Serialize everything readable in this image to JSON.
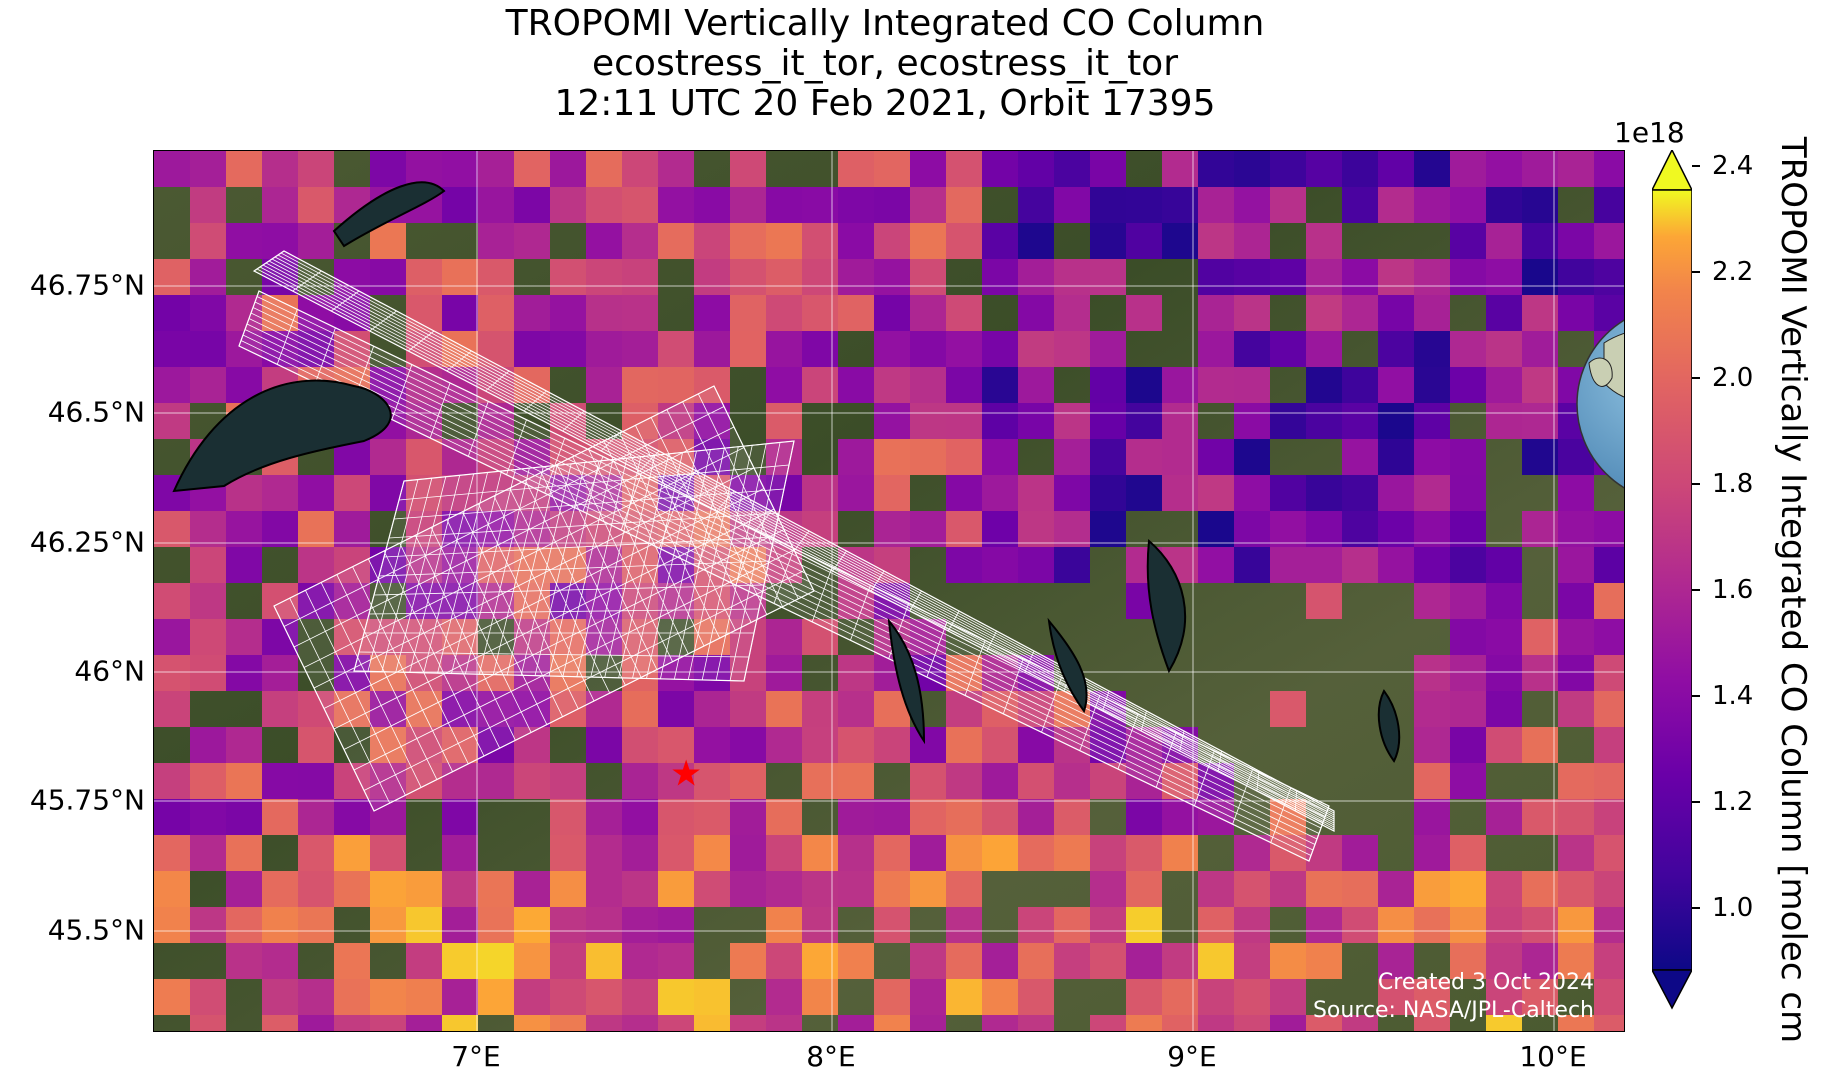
{
  "title": {
    "line1": "TROPOMI Vertically Integrated CO Column",
    "line2": "ecostress_it_tor, ecostress_it_tor",
    "line3": "12:11 UTC 20 Feb 2021, Orbit 17395"
  },
  "map": {
    "lon_range": [
      6.05,
      10.2
    ],
    "lat_range": [
      45.35,
      47.05
    ],
    "y_ticks": [
      "46.75°N",
      "46.5°N",
      "46.25°N",
      "46°N",
      "45.75°N",
      "45.5°N"
    ],
    "x_ticks": [
      "7°E",
      "8°E",
      "9°E",
      "10°E"
    ],
    "target_marker": {
      "name": "red-star",
      "lon": 7.55,
      "lat": 45.85
    },
    "credit_line1": "Created 3 Oct 2024",
    "credit_line2": "Source: NASA/JPL-Caltech",
    "colors": {
      "star": "#ff0000",
      "grid": "#ffffff",
      "swath_grid": "#ffffff",
      "terrain_base": "#3a4a26"
    }
  },
  "colorbar": {
    "colormap": "plasma",
    "exponent": "1e18",
    "label": "TROPOMI Vertically Integrated CO Column [molec cm",
    "range": [
      0.9,
      2.45
    ],
    "ticks": [
      "2.4",
      "2.2",
      "2.0",
      "1.8",
      "1.6",
      "1.4",
      "1.2",
      "1.0"
    ],
    "extend": "both"
  }
}
